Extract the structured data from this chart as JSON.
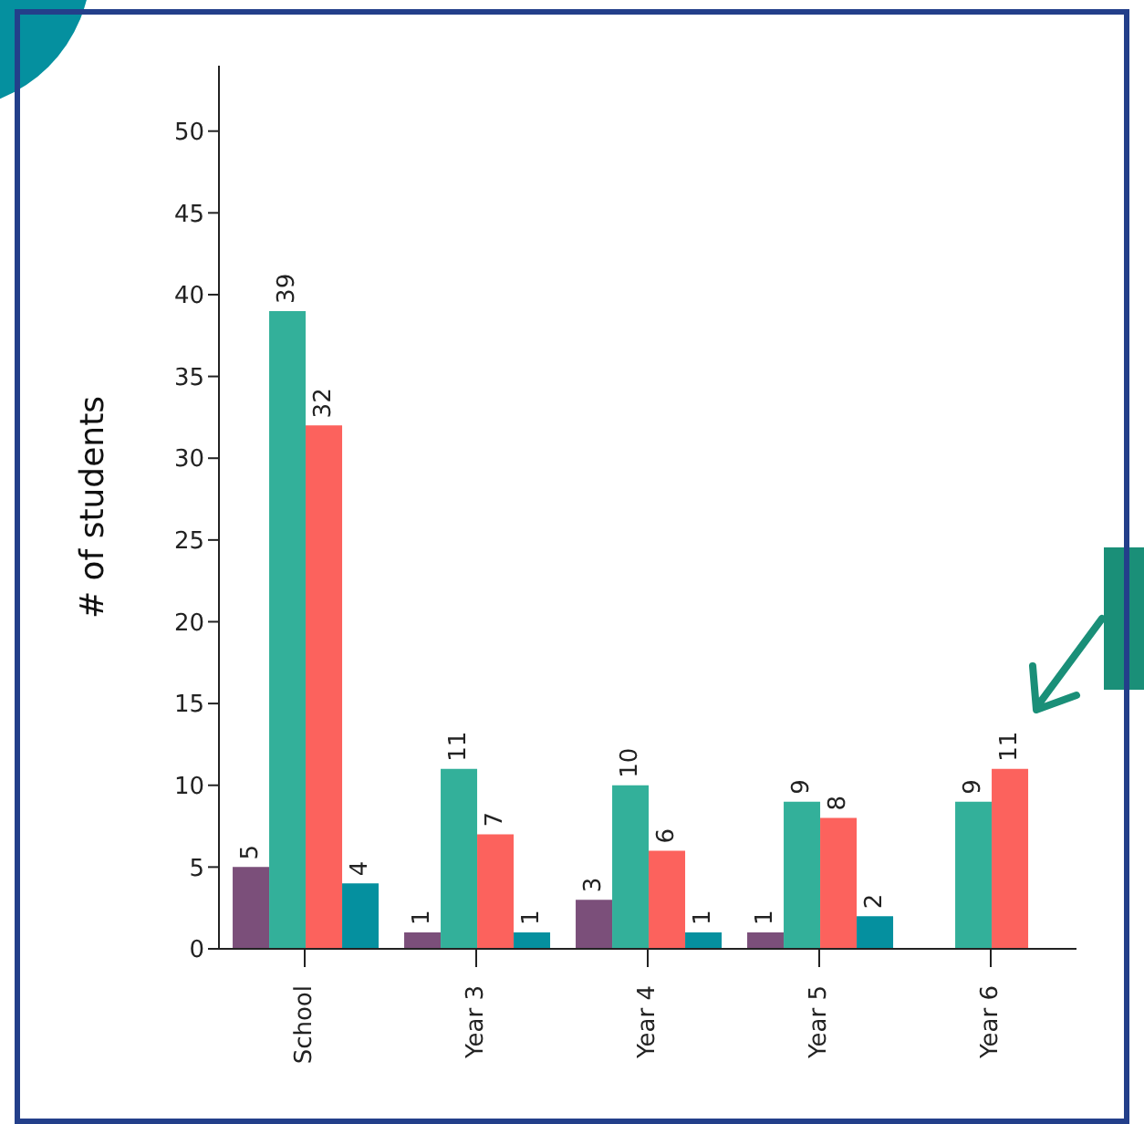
{
  "chart_data": {
    "type": "bar",
    "ylabel": "# of students",
    "categories": [
      "School",
      "Year 3",
      "Year 4",
      "Year 5",
      "Year 6"
    ],
    "series": [
      {
        "color": "#7b4f7a",
        "values": [
          5,
          1,
          3,
          1,
          null
        ]
      },
      {
        "color": "#33b09a",
        "values": [
          39,
          11,
          10,
          9,
          9
        ]
      },
      {
        "color": "#fc625d",
        "values": [
          32,
          7,
          6,
          8,
          11
        ]
      },
      {
        "color": "#05909f",
        "values": [
          4,
          1,
          1,
          2,
          null
        ]
      }
    ],
    "ylim": [
      0,
      54
    ],
    "yticks": [
      0,
      5,
      10,
      15,
      20,
      25,
      30,
      35,
      40,
      45,
      50
    ],
    "data_labels": true,
    "grid": false,
    "legend": false
  }
}
